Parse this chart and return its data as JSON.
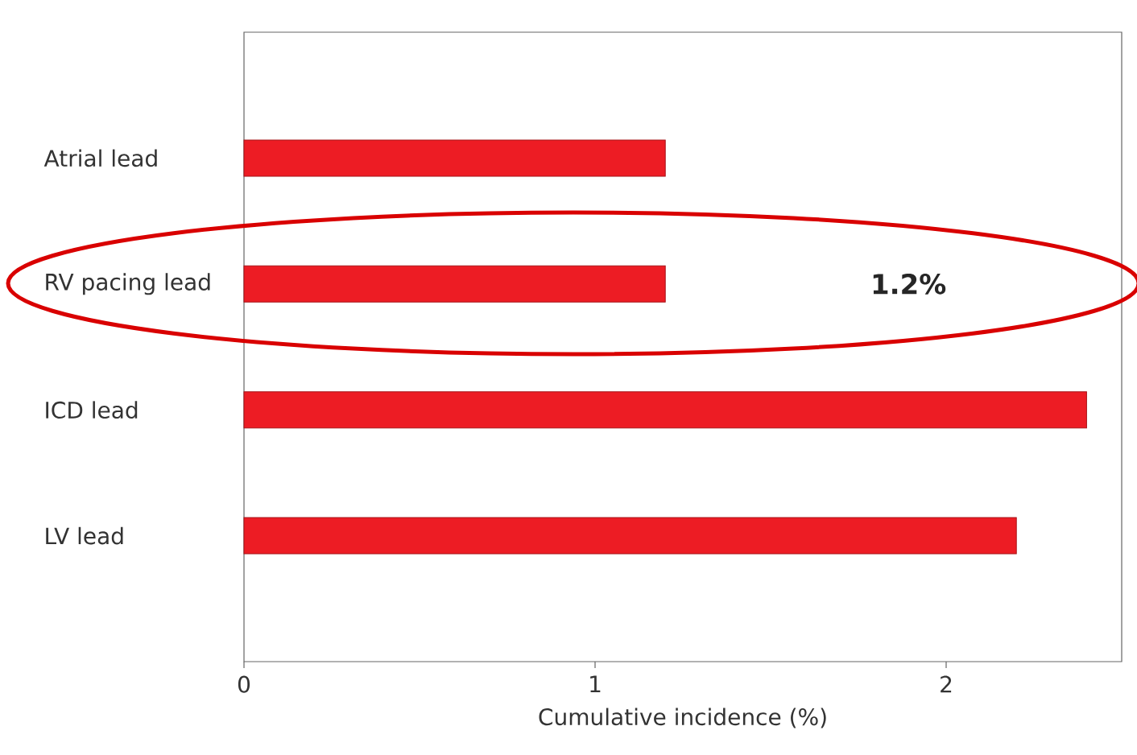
{
  "chart_data": {
    "type": "bar",
    "orientation": "horizontal",
    "categories": [
      "Atrial lead",
      "RV pacing lead",
      "ICD lead",
      "LV lead"
    ],
    "values": [
      1.2,
      1.2,
      2.4,
      2.2
    ],
    "color": "#ed1c24",
    "xlim": [
      0,
      2.5
    ],
    "xticks": [
      0,
      1,
      2
    ],
    "xlabel": "Cumulative incidence (%)",
    "annotations": [
      "1.2%"
    ]
  }
}
